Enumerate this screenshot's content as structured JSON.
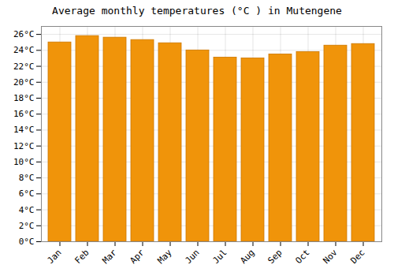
{
  "chart_data": {
    "type": "bar",
    "title": "Average monthly temperatures (°C ) in Mutengene",
    "categories": [
      "Jan",
      "Feb",
      "Mar",
      "Apr",
      "May",
      "Jun",
      "Jul",
      "Aug",
      "Sep",
      "Oct",
      "Nov",
      "Dec"
    ],
    "values": [
      25.0,
      25.8,
      25.6,
      25.3,
      24.9,
      24.0,
      23.1,
      23.0,
      23.5,
      23.8,
      24.6,
      24.8
    ],
    "color": "#F0940A",
    "ylim": [
      0,
      27
    ],
    "yticks": [
      {
        "value": 0,
        "label": "0°C"
      },
      {
        "value": 2,
        "label": "2°C"
      },
      {
        "value": 4,
        "label": "4°C"
      },
      {
        "value": 6,
        "label": "6°C"
      },
      {
        "value": 8,
        "label": "8°C"
      },
      {
        "value": 10,
        "label": "10°C"
      },
      {
        "value": 12,
        "label": "12°C"
      },
      {
        "value": 14,
        "label": "14°C"
      },
      {
        "value": 16,
        "label": "16°C"
      },
      {
        "value": 18,
        "label": "18°C"
      },
      {
        "value": 20,
        "label": "20°C"
      },
      {
        "value": 22,
        "label": "22°C"
      },
      {
        "value": 24,
        "label": "24°C"
      },
      {
        "value": 26,
        "label": "26°C"
      }
    ],
    "grid": true
  }
}
